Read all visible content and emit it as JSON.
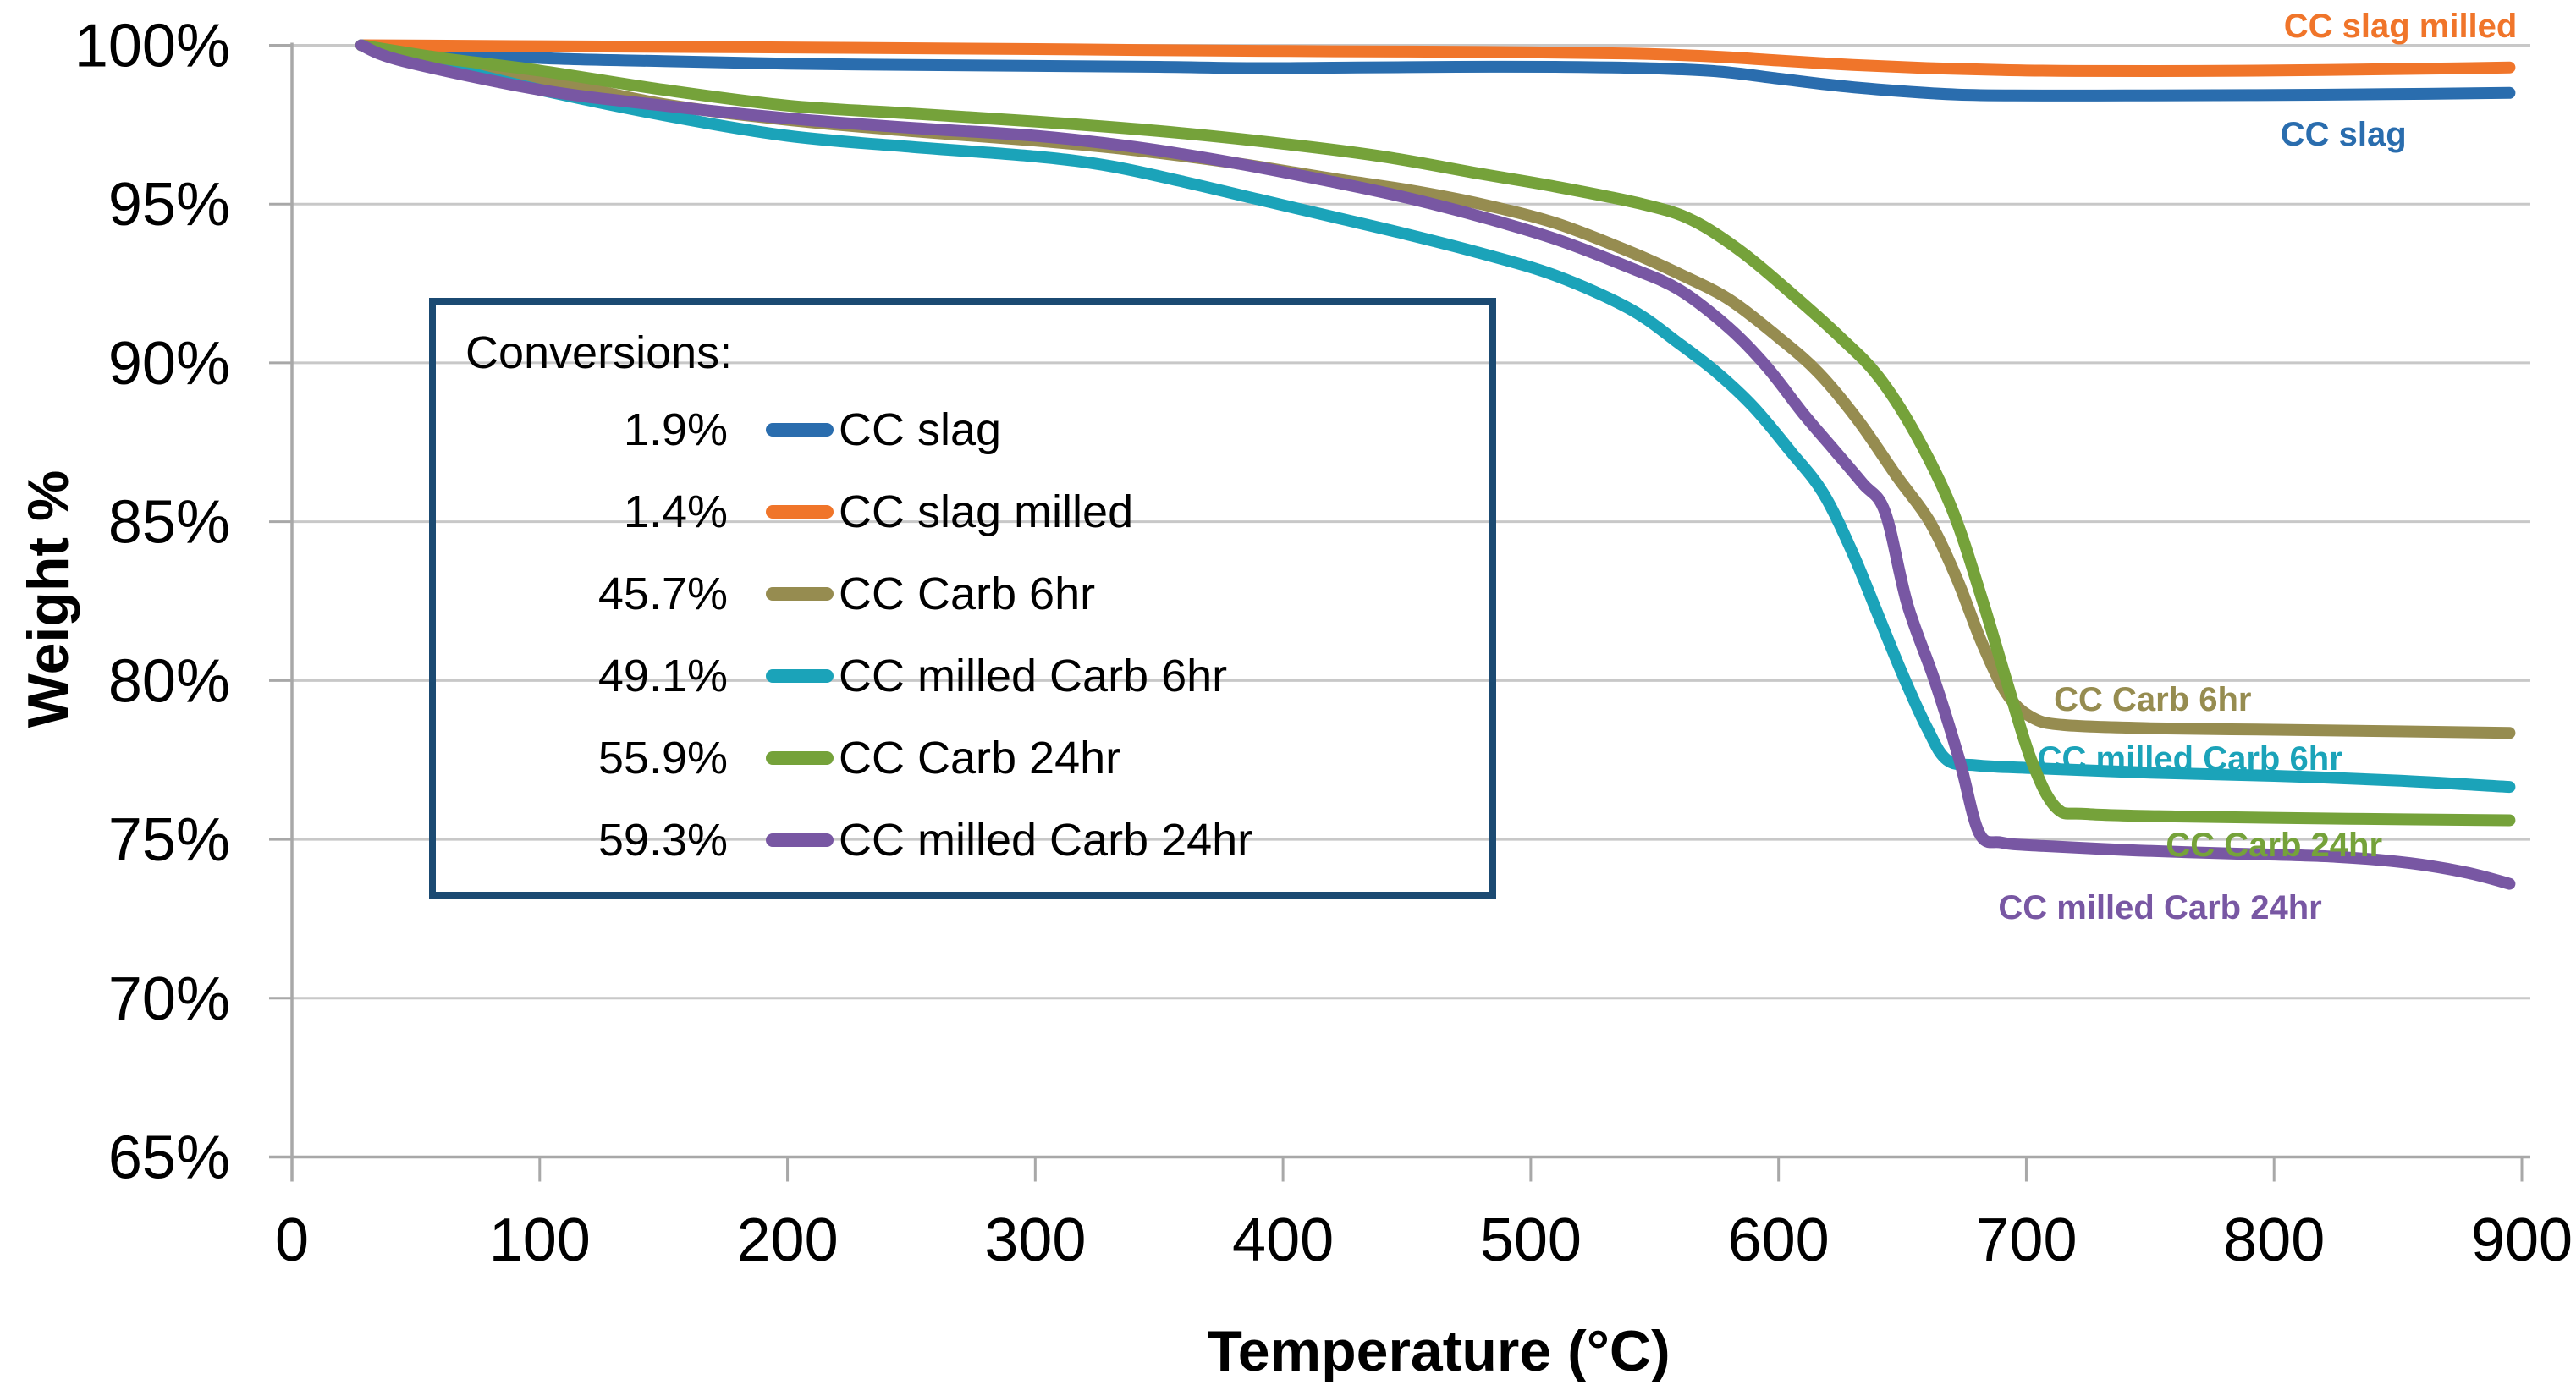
{
  "chart_data": {
    "type": "line",
    "title": "",
    "xlabel": "Temperature (°C)",
    "ylabel": "Weight %",
    "xlim": [
      0,
      900
    ],
    "ylim": [
      65,
      100
    ],
    "x_ticks": [
      0,
      100,
      200,
      300,
      400,
      500,
      600,
      700,
      800,
      900
    ],
    "y_ticks": [
      100,
      95,
      90,
      85,
      80,
      75,
      70,
      65
    ],
    "y_tick_suffix": "%",
    "grid": true,
    "grid_color": "#C8C8C8",
    "axis_color": "#A8A8A8",
    "text_color": "#000000",
    "legend_position": "inside-upper-left",
    "legend": {
      "title": "Conversions:",
      "border_color": "#1B4A72",
      "entries": [
        {
          "conversion": "1.9%",
          "label": "CC slag",
          "color": "#2A6DAE"
        },
        {
          "conversion": "1.4%",
          "label": "CC slag milled",
          "color": "#F0752A"
        },
        {
          "conversion": "45.7%",
          "label": "CC Carb 6hr",
          "color": "#968C50"
        },
        {
          "conversion": "49.1%",
          "label": "CC milled  Carb 6hr",
          "color": "#1BA3B9"
        },
        {
          "conversion": "55.9%",
          "label": "CC Carb 24hr",
          "color": "#75A23A"
        },
        {
          "conversion": "59.3%",
          "label": "CC milled  Carb 24hr",
          "color": "#7857A3"
        }
      ]
    },
    "series": [
      {
        "name": "CC slag",
        "color": "#2A6DAE",
        "conversion": "1.9%",
        "curve_label": {
          "text": "CC slag",
          "t": 828,
          "w": 97.22
        },
        "points": [
          [
            28,
            100
          ],
          [
            60,
            99.85
          ],
          [
            100,
            99.6
          ],
          [
            150,
            99.5
          ],
          [
            200,
            99.42
          ],
          [
            250,
            99.38
          ],
          [
            300,
            99.35
          ],
          [
            350,
            99.32
          ],
          [
            390,
            99.28
          ],
          [
            430,
            99.3
          ],
          [
            470,
            99.32
          ],
          [
            510,
            99.32
          ],
          [
            545,
            99.28
          ],
          [
            575,
            99.18
          ],
          [
            600,
            98.95
          ],
          [
            625,
            98.72
          ],
          [
            650,
            98.55
          ],
          [
            672,
            98.45
          ],
          [
            695,
            98.42
          ],
          [
            740,
            98.42
          ],
          [
            790,
            98.43
          ],
          [
            845,
            98.46
          ],
          [
            895,
            98.5
          ]
        ]
      },
      {
        "name": "CC slag milled",
        "color": "#F0752A",
        "conversion": "1.4%",
        "curve_label": {
          "text": "CC slag milled",
          "t": 851,
          "w": 100.63
        },
        "points": [
          [
            28,
            100
          ],
          [
            100,
            99.97
          ],
          [
            200,
            99.93
          ],
          [
            300,
            99.88
          ],
          [
            360,
            99.84
          ],
          [
            420,
            99.81
          ],
          [
            480,
            99.79
          ],
          [
            540,
            99.74
          ],
          [
            575,
            99.64
          ],
          [
            600,
            99.52
          ],
          [
            630,
            99.38
          ],
          [
            660,
            99.28
          ],
          [
            690,
            99.22
          ],
          [
            720,
            99.19
          ],
          [
            770,
            99.19
          ],
          [
            820,
            99.22
          ],
          [
            860,
            99.26
          ],
          [
            895,
            99.3
          ]
        ]
      },
      {
        "name": "CC Carb 6hr",
        "color": "#968C50",
        "conversion": "45.7%",
        "curve_label": {
          "text": "CC Carb 6hr",
          "t": 751,
          "w": 79.42
        },
        "points": [
          [
            28,
            100
          ],
          [
            60,
            99.5
          ],
          [
            100,
            98.95
          ],
          [
            150,
            98.15
          ],
          [
            200,
            97.65
          ],
          [
            250,
            97.3
          ],
          [
            300,
            97.0
          ],
          [
            340,
            96.7
          ],
          [
            380,
            96.3
          ],
          [
            420,
            95.8
          ],
          [
            450,
            95.45
          ],
          [
            480,
            95.0
          ],
          [
            510,
            94.4
          ],
          [
            540,
            93.5
          ],
          [
            560,
            92.8
          ],
          [
            580,
            92.0
          ],
          [
            600,
            90.8
          ],
          [
            616,
            89.7
          ],
          [
            632,
            88.2
          ],
          [
            648,
            86.4
          ],
          [
            661,
            85.0
          ],
          [
            672,
            83.2
          ],
          [
            682,
            81.2
          ],
          [
            692,
            79.6
          ],
          [
            702,
            78.85
          ],
          [
            715,
            78.6
          ],
          [
            750,
            78.5
          ],
          [
            800,
            78.45
          ],
          [
            850,
            78.4
          ],
          [
            895,
            78.35
          ]
        ]
      },
      {
        "name": "CC milled  Carb 6hr",
        "color": "#1BA3B9",
        "conversion": "49.1%",
        "curve_label": {
          "text": "CC milled Carb 6hr",
          "t": 766,
          "w": 77.56
        },
        "points": [
          [
            28,
            100
          ],
          [
            60,
            99.35
          ],
          [
            100,
            98.6
          ],
          [
            150,
            97.8
          ],
          [
            200,
            97.15
          ],
          [
            250,
            96.8
          ],
          [
            300,
            96.5
          ],
          [
            330,
            96.2
          ],
          [
            360,
            95.7
          ],
          [
            390,
            95.15
          ],
          [
            420,
            94.6
          ],
          [
            450,
            94.05
          ],
          [
            480,
            93.45
          ],
          [
            510,
            92.75
          ],
          [
            540,
            91.7
          ],
          [
            560,
            90.6
          ],
          [
            575,
            89.7
          ],
          [
            590,
            88.6
          ],
          [
            605,
            87.2
          ],
          [
            618,
            85.9
          ],
          [
            630,
            84.0
          ],
          [
            640,
            82.1
          ],
          [
            650,
            80.2
          ],
          [
            660,
            78.5
          ],
          [
            668,
            77.5
          ],
          [
            680,
            77.33
          ],
          [
            700,
            77.25
          ],
          [
            750,
            77.1
          ],
          [
            800,
            77.0
          ],
          [
            850,
            76.85
          ],
          [
            895,
            76.65
          ]
        ]
      },
      {
        "name": "CC Carb 24hr",
        "color": "#75A23A",
        "conversion": "55.9%",
        "curve_label": {
          "text": "CC Carb 24hr",
          "t": 800,
          "w": 74.84
        },
        "points": [
          [
            28,
            100
          ],
          [
            60,
            99.6
          ],
          [
            100,
            99.2
          ],
          [
            150,
            98.6
          ],
          [
            200,
            98.1
          ],
          [
            250,
            97.85
          ],
          [
            300,
            97.6
          ],
          [
            350,
            97.3
          ],
          [
            400,
            96.9
          ],
          [
            440,
            96.5
          ],
          [
            480,
            95.95
          ],
          [
            510,
            95.55
          ],
          [
            545,
            95.0
          ],
          [
            565,
            94.5
          ],
          [
            585,
            93.5
          ],
          [
            605,
            92.2
          ],
          [
            625,
            90.8
          ],
          [
            640,
            89.6
          ],
          [
            655,
            87.8
          ],
          [
            670,
            85.4
          ],
          [
            682,
            82.6
          ],
          [
            692,
            80.0
          ],
          [
            702,
            77.5
          ],
          [
            712,
            76.0
          ],
          [
            724,
            75.8
          ],
          [
            760,
            75.72
          ],
          [
            830,
            75.65
          ],
          [
            895,
            75.6
          ]
        ]
      },
      {
        "name": "CC milled  Carb 24hr",
        "color": "#7857A3",
        "conversion": "59.3%",
        "curve_label": {
          "text": "CC milled Carb 24hr",
          "t": 754,
          "w": 72.87
        },
        "points": [
          [
            28,
            100
          ],
          [
            45,
            99.5
          ],
          [
            100,
            98.6
          ],
          [
            150,
            98.1
          ],
          [
            200,
            97.7
          ],
          [
            250,
            97.4
          ],
          [
            300,
            97.15
          ],
          [
            340,
            96.8
          ],
          [
            380,
            96.3
          ],
          [
            420,
            95.7
          ],
          [
            450,
            95.2
          ],
          [
            480,
            94.6
          ],
          [
            510,
            93.9
          ],
          [
            540,
            93.0
          ],
          [
            560,
            92.3
          ],
          [
            580,
            91.1
          ],
          [
            595,
            89.9
          ],
          [
            610,
            88.4
          ],
          [
            622,
            87.3
          ],
          [
            634,
            86.2
          ],
          [
            643,
            85.3
          ],
          [
            652,
            82.4
          ],
          [
            663,
            80.0
          ],
          [
            673,
            77.5
          ],
          [
            681,
            75.2
          ],
          [
            690,
            74.9
          ],
          [
            705,
            74.8
          ],
          [
            745,
            74.65
          ],
          [
            785,
            74.55
          ],
          [
            825,
            74.45
          ],
          [
            855,
            74.25
          ],
          [
            878,
            73.95
          ],
          [
            895,
            73.6
          ]
        ]
      }
    ]
  }
}
